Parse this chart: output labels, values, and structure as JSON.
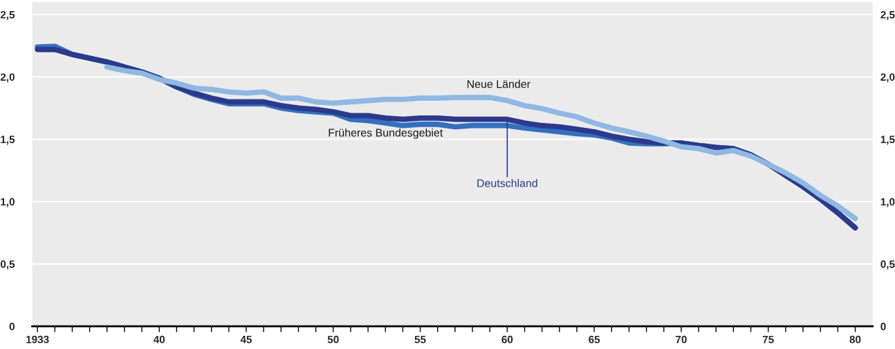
{
  "chart_data": {
    "type": "line",
    "x": [
      1933,
      1934,
      1935,
      1936,
      1937,
      1938,
      1939,
      1940,
      1941,
      1942,
      1943,
      1944,
      1945,
      1946,
      1947,
      1948,
      1949,
      1950,
      1951,
      1952,
      1953,
      1954,
      1955,
      1956,
      1957,
      1958,
      1959,
      1960,
      1961,
      1962,
      1963,
      1964,
      1965,
      1966,
      1967,
      1968,
      1969,
      1970,
      1971,
      1972,
      1973,
      1974,
      1975,
      1976,
      1977,
      1978,
      1979,
      1980
    ],
    "series": [
      {
        "name": "Früheres Bundesgebiet",
        "color": "#3370bf",
        "values": [
          2.24,
          2.245,
          2.18,
          2.15,
          2.12,
          2.08,
          2.04,
          1.99,
          1.92,
          1.86,
          1.82,
          1.785,
          1.785,
          1.785,
          1.75,
          1.73,
          1.72,
          1.71,
          1.66,
          1.65,
          1.63,
          1.61,
          1.62,
          1.62,
          1.6,
          1.61,
          1.61,
          1.61,
          1.59,
          1.575,
          1.56,
          1.545,
          1.535,
          1.51,
          1.47,
          1.465,
          1.465,
          1.47,
          1.45,
          1.435,
          1.425,
          1.375,
          1.3,
          1.21,
          1.12,
          1.02,
          0.91,
          0.79
        ]
      },
      {
        "name": "Deutschland",
        "color": "#2b3a8c",
        "values": [
          2.22,
          2.22,
          2.18,
          2.15,
          2.12,
          2.08,
          2.04,
          1.99,
          1.92,
          1.87,
          1.83,
          1.8,
          1.8,
          1.8,
          1.77,
          1.75,
          1.74,
          1.72,
          1.69,
          1.69,
          1.67,
          1.66,
          1.67,
          1.67,
          1.66,
          1.66,
          1.66,
          1.66,
          1.63,
          1.61,
          1.6,
          1.58,
          1.56,
          1.525,
          1.5,
          1.48,
          1.47,
          1.47,
          1.45,
          1.435,
          1.425,
          1.375,
          1.3,
          1.21,
          1.12,
          1.02,
          0.91,
          0.79
        ]
      },
      {
        "name": "Neue Länder",
        "color": "#8fb8e3",
        "x": [
          1937,
          1938,
          1939,
          1940,
          1941,
          1942,
          1943,
          1944,
          1945,
          1946,
          1947,
          1948,
          1949,
          1950,
          1951,
          1952,
          1953,
          1954,
          1955,
          1956,
          1957,
          1958,
          1959,
          1960,
          1961,
          1962,
          1963,
          1964,
          1965,
          1966,
          1967,
          1968,
          1969,
          1970,
          1971,
          1972,
          1973,
          1974,
          1975,
          1976,
          1977,
          1978,
          1979,
          1980
        ],
        "values": [
          2.08,
          2.05,
          2.03,
          1.98,
          1.95,
          1.91,
          1.9,
          1.88,
          1.87,
          1.88,
          1.83,
          1.83,
          1.8,
          1.79,
          1.8,
          1.81,
          1.82,
          1.82,
          1.83,
          1.83,
          1.835,
          1.835,
          1.835,
          1.81,
          1.77,
          1.745,
          1.71,
          1.68,
          1.63,
          1.59,
          1.56,
          1.525,
          1.485,
          1.44,
          1.425,
          1.39,
          1.41,
          1.365,
          1.3,
          1.23,
          1.15,
          1.05,
          0.965,
          0.865
        ]
      }
    ],
    "xlim": [
      1932.7,
      1981
    ],
    "xticks": [
      1933,
      {
        "value": 1934,
        "label": null
      },
      {
        "value": 1935,
        "label": null
      },
      {
        "value": 1936,
        "label": null
      },
      {
        "value": 1937,
        "label": null
      },
      {
        "value": 1938,
        "label": null
      },
      {
        "value": 1939,
        "label": null
      },
      {
        "value": 1940,
        "label": "40"
      },
      {
        "value": 1941,
        "label": null
      },
      {
        "value": 1942,
        "label": null
      },
      {
        "value": 1943,
        "label": null
      },
      {
        "value": 1944,
        "label": null
      },
      {
        "value": 1945,
        "label": "45"
      },
      {
        "value": 1946,
        "label": null
      },
      {
        "value": 1947,
        "label": null
      },
      {
        "value": 1948,
        "label": null
      },
      {
        "value": 1949,
        "label": null
      },
      {
        "value": 1950,
        "label": "50"
      },
      {
        "value": 1951,
        "label": null
      },
      {
        "value": 1952,
        "label": null
      },
      {
        "value": 1953,
        "label": null
      },
      {
        "value": 1954,
        "label": null
      },
      {
        "value": 1955,
        "label": "55"
      },
      {
        "value": 1956,
        "label": null
      },
      {
        "value": 1957,
        "label": null
      },
      {
        "value": 1958,
        "label": null
      },
      {
        "value": 1959,
        "label": null
      },
      {
        "value": 1960,
        "label": "60"
      },
      {
        "value": 1961,
        "label": null
      },
      {
        "value": 1962,
        "label": null
      },
      {
        "value": 1963,
        "label": null
      },
      {
        "value": 1964,
        "label": null
      },
      {
        "value": 1965,
        "label": "65"
      },
      {
        "value": 1966,
        "label": null
      },
      {
        "value": 1967,
        "label": null
      },
      {
        "value": 1968,
        "label": null
      },
      {
        "value": 1969,
        "label": null
      },
      {
        "value": 1970,
        "label": "70"
      },
      {
        "value": 1971,
        "label": null
      },
      {
        "value": 1972,
        "label": null
      },
      {
        "value": 1973,
        "label": null
      },
      {
        "value": 1974,
        "label": null
      },
      {
        "value": 1975,
        "label": "75"
      },
      {
        "value": 1976,
        "label": null
      },
      {
        "value": 1977,
        "label": null
      },
      {
        "value": 1978,
        "label": null
      },
      {
        "value": 1979,
        "label": null
      },
      {
        "value": 1980,
        "label": "80"
      }
    ],
    "ylim": [
      0,
      2.6
    ],
    "yticks": [
      0,
      {
        "value": 0.5,
        "label": "0,5"
      },
      {
        "value": 1.0,
        "label": "1,0"
      },
      {
        "value": 1.5,
        "label": "1,5"
      },
      {
        "value": 2.0,
        "label": "2,0"
      },
      {
        "value": 2.5,
        "label": "2,5"
      }
    ],
    "y2lim": [
      0,
      2.6
    ],
    "y2ticks": [
      0,
      {
        "value": 0.5,
        "label": "0,5"
      },
      {
        "value": 1.0,
        "label": "1,0"
      },
      {
        "value": 1.5,
        "label": "1,5"
      },
      {
        "value": 2.0,
        "label": "2,0"
      },
      {
        "value": 2.5,
        "label": "2,5"
      }
    ],
    "grid": "y",
    "legend": false,
    "marker": "none",
    "line_style": "solid"
  }
}
